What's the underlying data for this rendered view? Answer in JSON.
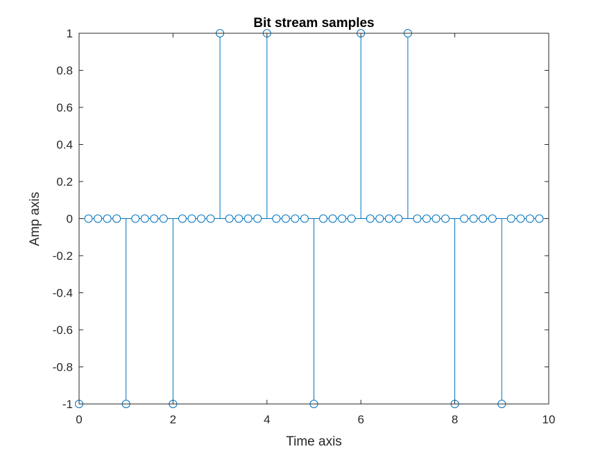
{
  "chart_data": {
    "type": "stem",
    "title": "Bit stream samples",
    "xlabel": "Time axis",
    "ylabel": "Amp axis",
    "xlim": [
      0,
      10
    ],
    "ylim": [
      -1,
      1
    ],
    "xticks": [
      0,
      2,
      4,
      6,
      8,
      10
    ],
    "xtick_labels": [
      "0",
      "2",
      "4",
      "6",
      "8",
      "10"
    ],
    "yticks": [
      -1,
      -0.8,
      -0.6,
      -0.4,
      -0.2,
      0,
      0.2,
      0.4,
      0.6,
      0.8,
      1
    ],
    "ytick_labels": [
      "-1",
      "-0.8",
      "-0.6",
      "-0.4",
      "-0.2",
      "0",
      "0.2",
      "0.4",
      "0.6",
      "0.8",
      "1"
    ],
    "grid": false,
    "color": "#0072BD",
    "x": [
      0,
      0.2,
      0.4,
      0.6,
      0.8,
      1,
      1.2,
      1.4,
      1.6,
      1.8,
      2,
      2.2,
      2.4,
      2.6,
      2.8,
      3,
      3.2,
      3.4,
      3.6,
      3.8,
      4,
      4.2,
      4.4,
      4.6,
      4.8,
      5,
      5.2,
      5.4,
      5.6,
      5.8,
      6,
      6.2,
      6.4,
      6.6,
      6.8,
      7,
      7.2,
      7.4,
      7.6,
      7.8,
      8,
      8.2,
      8.4,
      8.6,
      8.8,
      9,
      9.2,
      9.4,
      9.6,
      9.8
    ],
    "y": [
      -1,
      0,
      0,
      0,
      0,
      -1,
      0,
      0,
      0,
      0,
      -1,
      0,
      0,
      0,
      0,
      1,
      0,
      0,
      0,
      0,
      1,
      0,
      0,
      0,
      0,
      -1,
      0,
      0,
      0,
      0,
      1,
      0,
      0,
      0,
      0,
      1,
      0,
      0,
      0,
      0,
      -1,
      0,
      0,
      0,
      0,
      -1,
      0,
      0,
      0,
      0
    ]
  }
}
